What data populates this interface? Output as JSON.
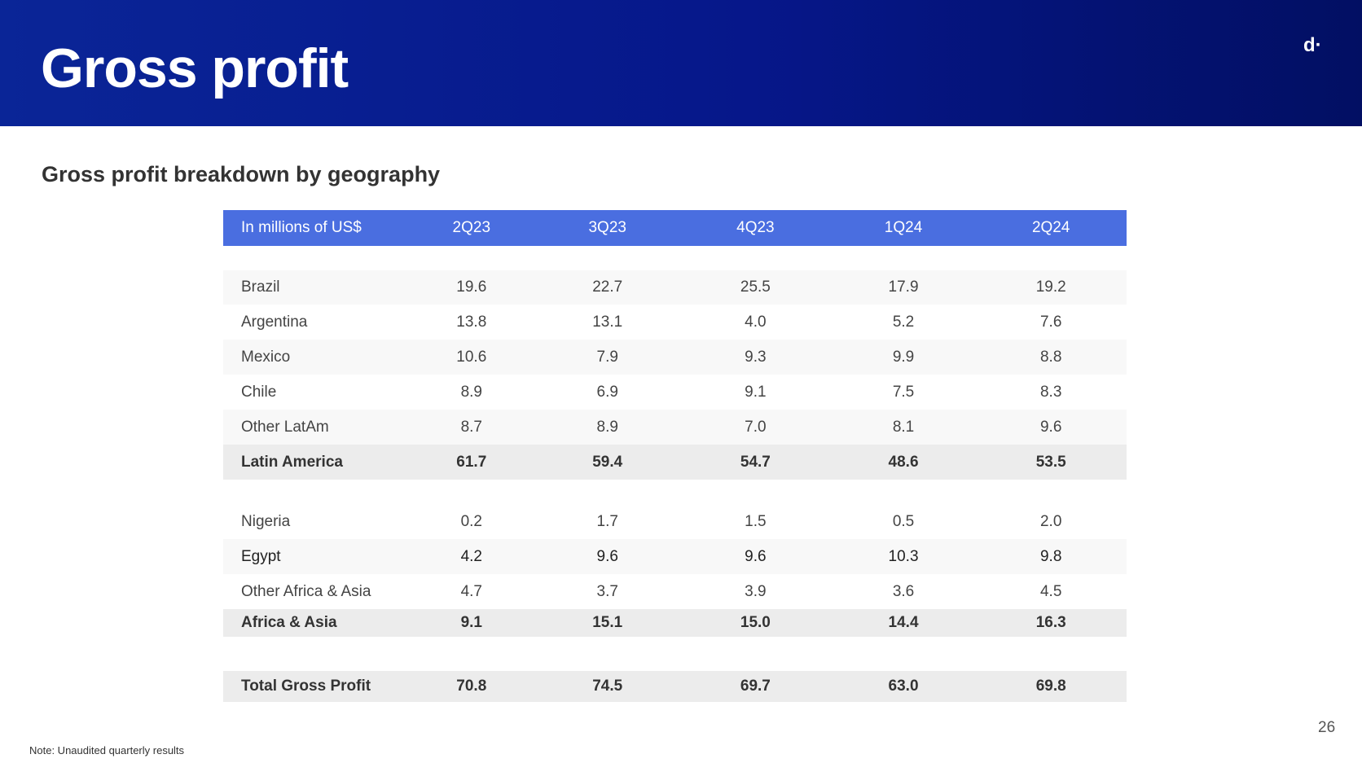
{
  "header": {
    "title": "Gross profit",
    "logo_text": "d·",
    "background_color": "#0a2597"
  },
  "subtitle": "Gross profit breakdown by geography",
  "table": {
    "columns": [
      "In millions of US$",
      "2Q23",
      "3Q23",
      "4Q23",
      "1Q24",
      "2Q24"
    ],
    "rows": [
      {
        "label": "Brazil",
        "values": [
          "19.6",
          "22.7",
          "25.5",
          "17.9",
          "19.2"
        ]
      },
      {
        "label": "Argentina",
        "values": [
          "13.8",
          "13.1",
          "4.0",
          "5.2",
          "7.6"
        ]
      },
      {
        "label": "Mexico",
        "values": [
          "10.6",
          "7.9",
          "9.3",
          "9.9",
          "8.8"
        ]
      },
      {
        "label": "Chile",
        "values": [
          "8.9",
          "6.9",
          "9.1",
          "7.5",
          "8.3"
        ]
      },
      {
        "label": "Other LatAm",
        "values": [
          "8.7",
          "8.9",
          "7.0",
          "8.1",
          "9.6"
        ]
      },
      {
        "label": "Latin America",
        "values": [
          "61.7",
          "59.4",
          "54.7",
          "48.6",
          "53.5"
        ]
      },
      {
        "label": "Nigeria",
        "values": [
          "0.2",
          "1.7",
          "1.5",
          "0.5",
          "2.0"
        ]
      },
      {
        "label": "Egypt",
        "values": [
          "4.2",
          "9.6",
          "9.6",
          "10.3",
          "9.8"
        ]
      },
      {
        "label": "Other Africa & Asia",
        "values": [
          "4.7",
          "3.7",
          "3.9",
          "3.6",
          "4.5"
        ]
      },
      {
        "label": "Africa & Asia",
        "values": [
          "9.1",
          "15.1",
          "15.0",
          "14.4",
          "16.3"
        ]
      },
      {
        "label": "Total Gross Profit",
        "values": [
          "70.8",
          "74.5",
          "69.7",
          "63.0",
          "69.8"
        ]
      }
    ]
  },
  "page_number": "26",
  "note": "Note: Unaudited quarterly results"
}
